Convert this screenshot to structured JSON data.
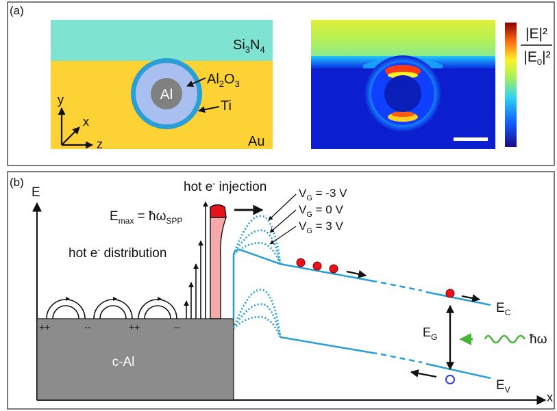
{
  "panel_a": {
    "label": "(a)",
    "top_layer": {
      "base": "Si",
      "sub1": "3",
      "mid": "N",
      "sub2": "4"
    },
    "substrate": "Au",
    "core": "Al",
    "shell": {
      "base": "Al",
      "sub1": "2",
      "mid": "O",
      "sub2": "3"
    },
    "coating": "Ti",
    "axes": {
      "y": "y",
      "x": "x",
      "z": "z"
    },
    "colorbar": {
      "num": "|E|²",
      "den_base": "|E",
      "den_sub": "0",
      "den_end": "|²"
    },
    "colors": {
      "si3n4": "#7fe3d2",
      "au": "#fcd235",
      "al2o3": "#a8bff0",
      "al": "#808080",
      "ti": "#2a9fd6"
    }
  },
  "panel_b": {
    "label": "(b)",
    "energy_axis": "E",
    "position_axis": "x",
    "injection": {
      "pre": "hot e",
      "sup": "-",
      "post": " injection"
    },
    "emax": {
      "E": "E",
      "sub": "max",
      "eq": " = ħω",
      "sub2": "SPP"
    },
    "distribution": {
      "pre": "hot e",
      "sup": "-",
      "post": " distribution"
    },
    "gate_voltages": [
      {
        "pre": "V",
        "sub": "G",
        "post": " = -3 V"
      },
      {
        "pre": "V",
        "sub": "G",
        "post": " = 0 V"
      },
      {
        "pre": "V",
        "sub": "G",
        "post": " = 3 V"
      }
    ],
    "metal": "c-Al",
    "charges": [
      "++",
      "--",
      "++",
      "--"
    ],
    "ec": {
      "base": "E",
      "sub": "C"
    },
    "ev": {
      "base": "E",
      "sub": "V"
    },
    "eg": {
      "base": "E",
      "sub": "G"
    },
    "photon": "ħω",
    "colors": {
      "band": "#2a9fd6",
      "electron": "#e8121c",
      "hole": "#2c3fd4",
      "photon": "#4ab33a",
      "metal": "#8c8c8c"
    }
  }
}
